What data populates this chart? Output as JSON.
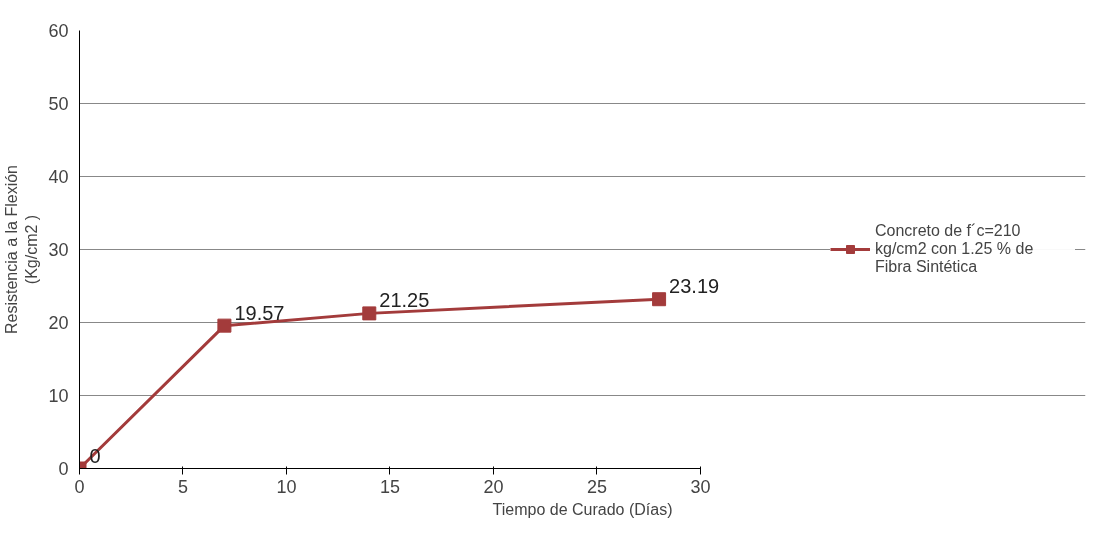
{
  "chart_data": {
    "type": "line",
    "xlabel": "Tiempo de Curado (Días)",
    "ylabel": "Resistencia a la Flexión\n(Kg/cm2 )",
    "x": [
      0,
      7,
      14,
      28
    ],
    "series": [
      {
        "name": "Concreto de f´c=210 kg/cm2 con 1.25 % de Fibra Sintética",
        "color": "#a33b3b",
        "values": [
          0,
          19.57,
          21.25,
          23.19
        ]
      }
    ],
    "xlim": [
      0,
      30
    ],
    "xticks": [
      0,
      5,
      10,
      15,
      20,
      25,
      30
    ],
    "ylim": [
      0,
      60
    ],
    "yticks": [
      0,
      10,
      20,
      30,
      40,
      50,
      60
    ],
    "grid": "y",
    "legend": "right",
    "marker": "square",
    "line_style": "solid",
    "data_labels": true
  }
}
